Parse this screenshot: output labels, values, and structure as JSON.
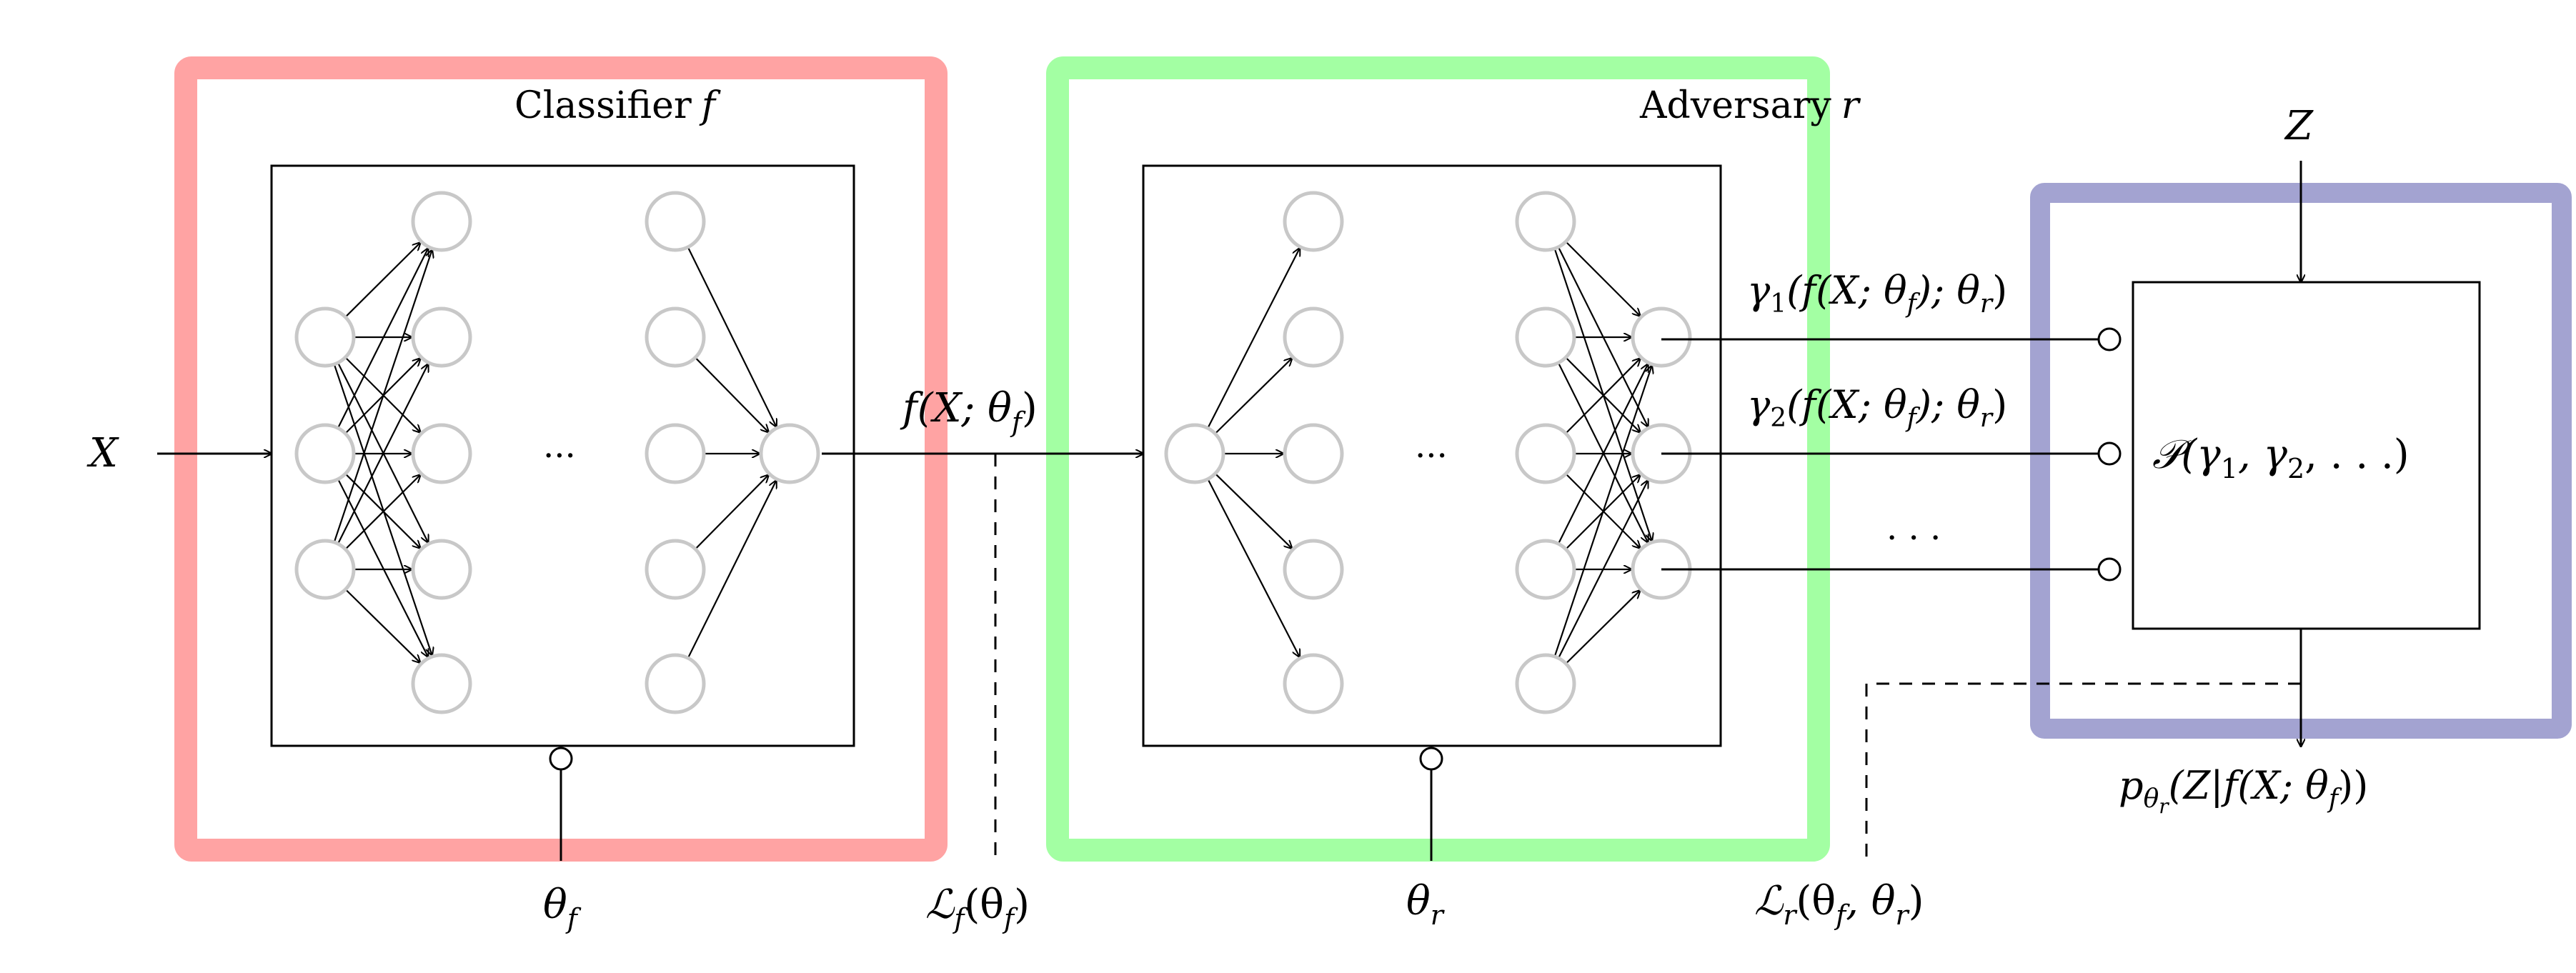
{
  "classifier": {
    "title": "Classifier",
    "title_var": "f",
    "param": "θ",
    "param_sub": "f"
  },
  "adversary": {
    "title": "Adversary",
    "title_var": "r",
    "param": "θ",
    "param_sub": "r"
  },
  "input_label": "X",
  "nuisance_label": "Z",
  "ellipsis": "...",
  "classifier_output": {
    "text": "f(X; θ",
    "sub": "f",
    "close": ")"
  },
  "classifier_loss": {
    "main": "ℒ",
    "sub": "f",
    "args": "(θ",
    "args_sub": "f",
    "close": ")"
  },
  "adversary_loss": {
    "main": "ℒ",
    "sub": "r",
    "args": "(θ",
    "args_sub1": "f",
    "mid": ", θ",
    "args_sub2": "r",
    "close": ")"
  },
  "gamma_outputs": [
    {
      "g": "γ",
      "sub": "1",
      "text": "(f(X; θ",
      "s1": "f",
      "mid": "); θ",
      "s2": "r",
      "close": ")"
    },
    {
      "g": "γ",
      "sub": "2",
      "text": "(f(X; θ",
      "s1": "f",
      "mid": "); θ",
      "s2": "r",
      "close": ")"
    }
  ],
  "gamma_dots": ". . .",
  "distribution": {
    "text": "𝒫(γ",
    "s1": "1",
    "mid": ", γ",
    "s2": "2",
    "close": ", . . .)"
  },
  "posterior": {
    "p": "p",
    "sub": "θ",
    "subsub": "r",
    "text": "(Z|f(X; θ",
    "s": "f",
    "close": "))"
  },
  "colors": {
    "classifier_box": "#ffa3a3",
    "adversary_box": "#a3ffa3",
    "mixture_box": "#a3a3d1",
    "node": "#c8c8c8"
  }
}
